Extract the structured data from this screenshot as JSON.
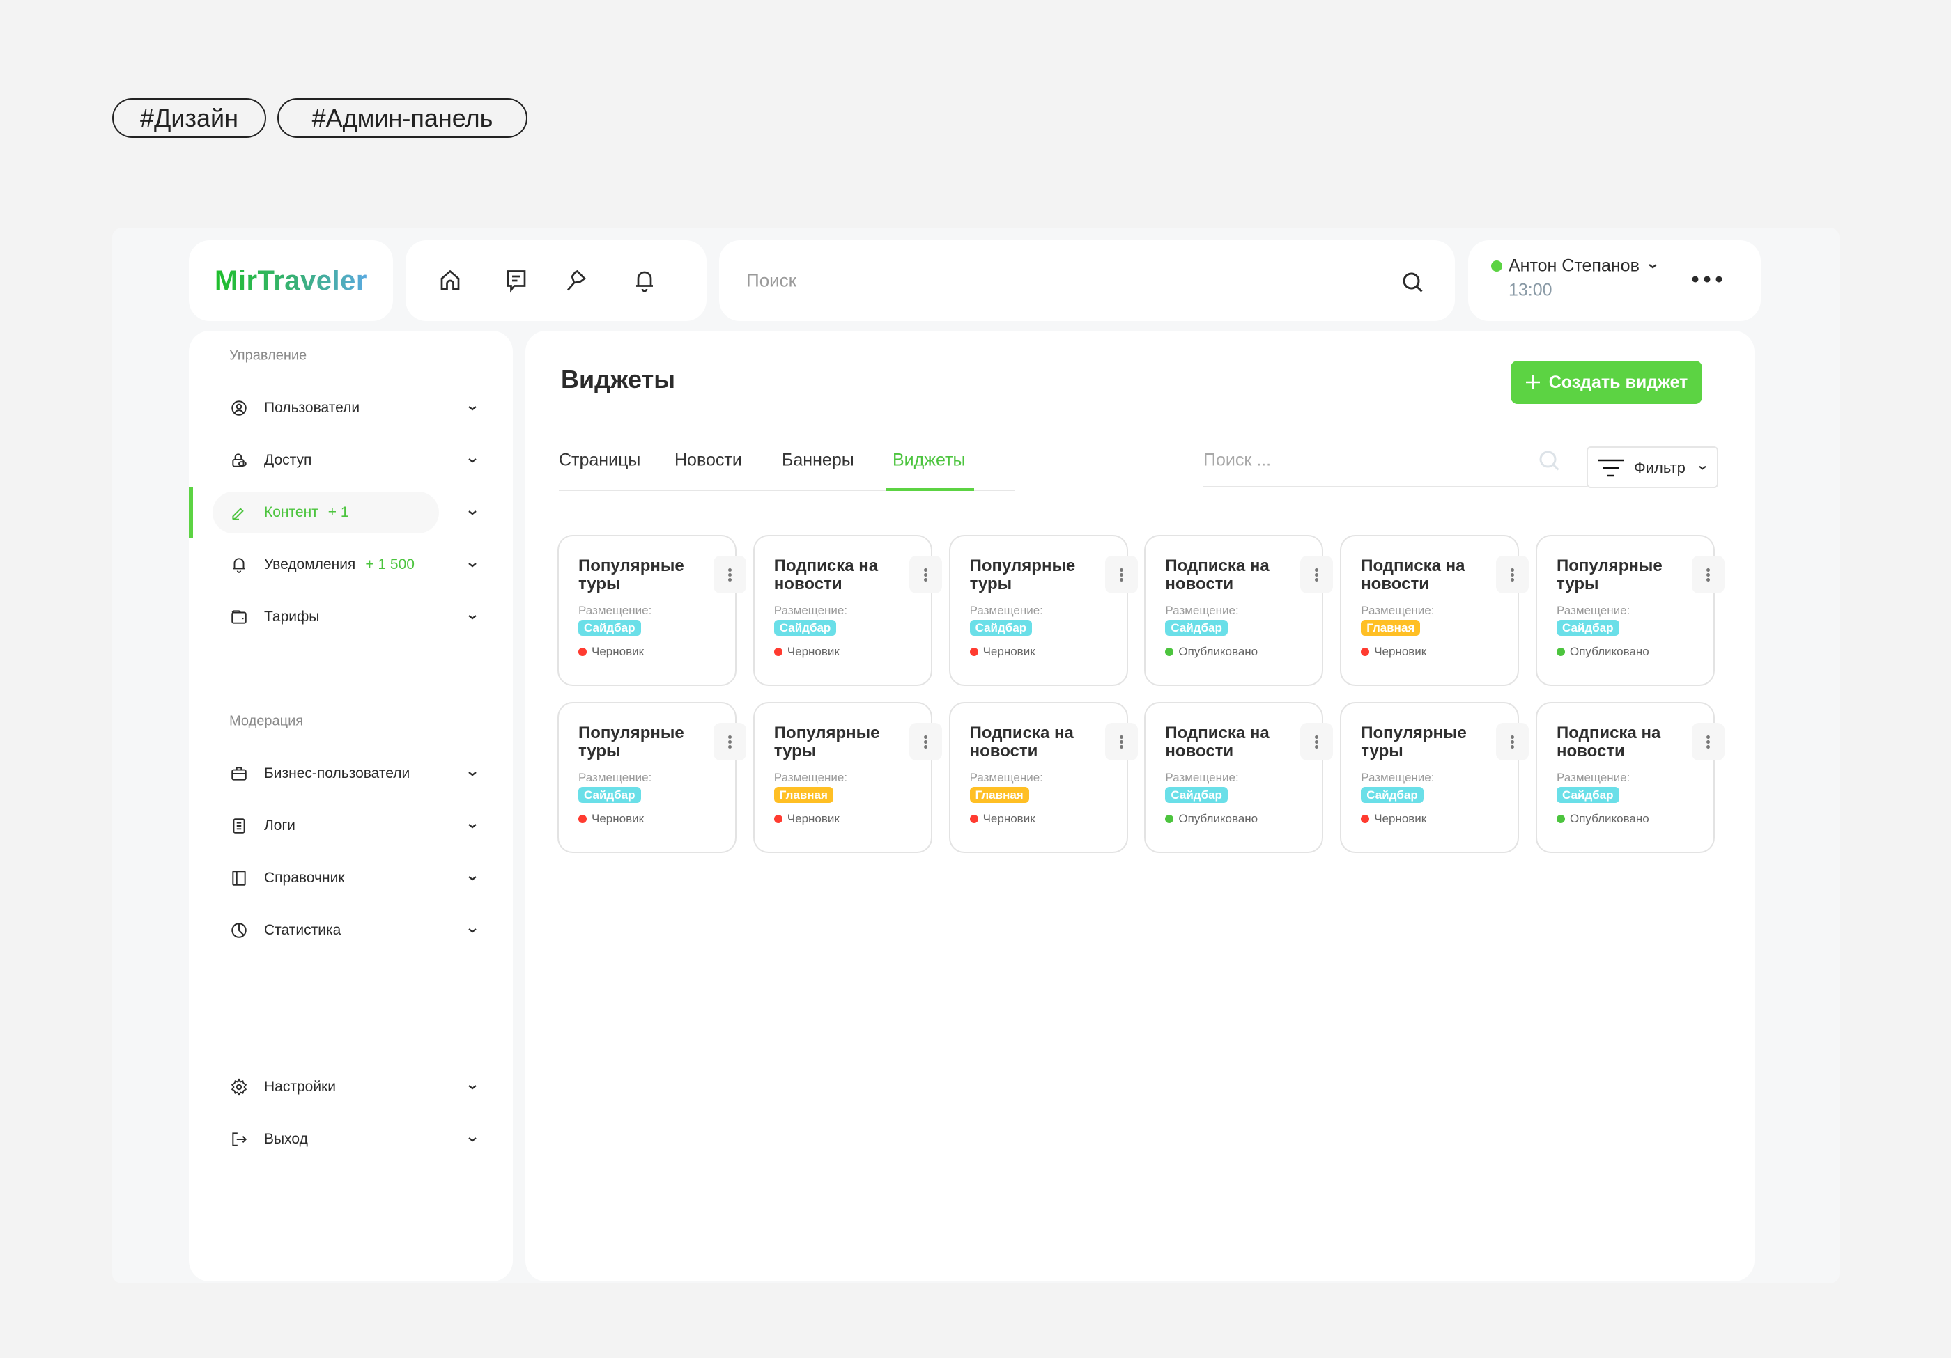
{
  "tags": [
    "#Дизайн",
    "#Админ-панель"
  ],
  "header": {
    "logo": "MirTraveler",
    "nav_icons": [
      "home-icon",
      "chat-icon",
      "pin-icon",
      "bell-icon"
    ],
    "search_placeholder": "Поиск",
    "user": {
      "name": "Антон Степанов",
      "time": "13:00",
      "status_color": "#4cc43e"
    }
  },
  "sidebar": {
    "section1": "Управление",
    "items1": [
      {
        "label": "Пользователи",
        "icon": "user-circle-icon",
        "count": ""
      },
      {
        "label": "Доступ",
        "icon": "lock-icon",
        "count": ""
      },
      {
        "label": "Контент",
        "icon": "edit-icon",
        "count": "+ 1",
        "active": true
      },
      {
        "label": "Уведомления",
        "icon": "bell-icon",
        "count": "+ 1 500"
      },
      {
        "label": "Тарифы",
        "icon": "wallet-icon",
        "count": ""
      }
    ],
    "section2": "Модерация",
    "items2": [
      {
        "label": "Бизнес-пользователи",
        "icon": "briefcase-icon"
      },
      {
        "label": "Логи",
        "icon": "log-icon"
      },
      {
        "label": "Справочник",
        "icon": "book-icon"
      },
      {
        "label": "Статистика",
        "icon": "chart-pie-icon"
      }
    ],
    "items3": [
      {
        "label": "Настройки",
        "icon": "gear-icon"
      },
      {
        "label": "Выход",
        "icon": "logout-icon"
      }
    ]
  },
  "main": {
    "title": "Виджеты",
    "create_button": "Создать виджет",
    "tabs": [
      {
        "label": "Страницы"
      },
      {
        "label": "Новости"
      },
      {
        "label": "Баннеры"
      },
      {
        "label": "Виджеты",
        "active": true
      }
    ],
    "search_placeholder": "Поиск ...",
    "filter_label": "Фильтр",
    "placement_label": "Размещение:",
    "accent": "#5cd343",
    "widgets": [
      {
        "title": "Популярные туры",
        "placement": "Сайдбар",
        "status": "Черновик"
      },
      {
        "title": "Подписка на новости",
        "placement": "Сайдбар",
        "status": "Черновик"
      },
      {
        "title": "Популярные туры",
        "placement": "Сайдбар",
        "status": "Черновик"
      },
      {
        "title": "Подписка на новости",
        "placement": "Сайдбар",
        "status": "Опубликовано"
      },
      {
        "title": "Подписка на новости",
        "placement": "Главная",
        "status": "Черновик"
      },
      {
        "title": "Популярные туры",
        "placement": "Сайдбар",
        "status": "Опубликовано"
      },
      {
        "title": "Популярные туры",
        "placement": "Сайдбар",
        "status": "Черновик"
      },
      {
        "title": "Популярные туры",
        "placement": "Главная",
        "status": "Черновик"
      },
      {
        "title": "Подписка на новости",
        "placement": "Главная",
        "status": "Черновик"
      },
      {
        "title": "Подписка на новости",
        "placement": "Сайдбар",
        "status": "Опубликовано"
      },
      {
        "title": "Популярные туры",
        "placement": "Сайдбар",
        "status": "Черновик"
      },
      {
        "title": "Подписка на новости",
        "placement": "Сайдбар",
        "status": "Опубликовано"
      }
    ],
    "placement_colors": {
      "Сайдбар": "#6adfe8",
      "Главная": "#ffbf24"
    },
    "status_colors": {
      "Черновик": "#ff3b30",
      "Опубликовано": "#4cc43e"
    }
  }
}
